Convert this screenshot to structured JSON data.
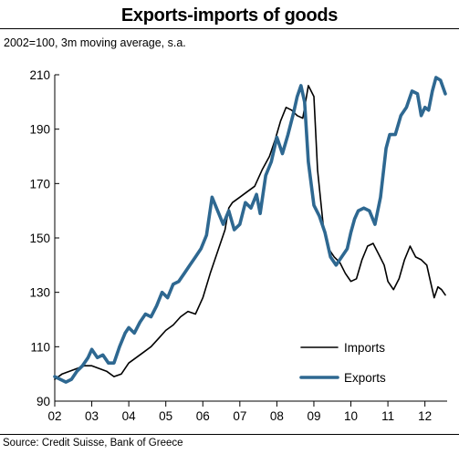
{
  "title": "Exports-imports of goods",
  "subtitle": "2002=100, 3m moving average, s.a.",
  "source": "Source: Credit Suisse, Bank of Greece",
  "chart_data": {
    "type": "line",
    "title": "Exports-imports of goods",
    "subtitle": "2002=100, 3m moving average, s.a.",
    "xlabel": "",
    "ylabel": "",
    "xlim": [
      2002,
      2012.6
    ],
    "ylim": [
      90,
      210
    ],
    "yticks": [
      90,
      110,
      130,
      150,
      170,
      190,
      210
    ],
    "xticks": [
      2002,
      2003,
      2004,
      2005,
      2006,
      2007,
      2008,
      2009,
      2010,
      2011,
      2012
    ],
    "xtick_labels": [
      "02",
      "03",
      "04",
      "05",
      "06",
      "07",
      "08",
      "09",
      "10",
      "11",
      "12"
    ],
    "grid": false,
    "legend_position": "bottom-right",
    "series": [
      {
        "name": "Imports",
        "color": "#000000",
        "points": [
          [
            2002.0,
            98
          ],
          [
            2002.2,
            100
          ],
          [
            2002.4,
            101
          ],
          [
            2002.6,
            102
          ],
          [
            2002.8,
            103
          ],
          [
            2003.0,
            103
          ],
          [
            2003.2,
            102
          ],
          [
            2003.4,
            101
          ],
          [
            2003.6,
            99
          ],
          [
            2003.8,
            100
          ],
          [
            2004.0,
            104
          ],
          [
            2004.2,
            106
          ],
          [
            2004.4,
            108
          ],
          [
            2004.6,
            110
          ],
          [
            2004.8,
            113
          ],
          [
            2005.0,
            116
          ],
          [
            2005.2,
            118
          ],
          [
            2005.4,
            121
          ],
          [
            2005.6,
            123
          ],
          [
            2005.8,
            122
          ],
          [
            2006.0,
            128
          ],
          [
            2006.2,
            137
          ],
          [
            2006.4,
            145
          ],
          [
            2006.6,
            153
          ],
          [
            2006.7,
            161
          ],
          [
            2006.8,
            163
          ],
          [
            2007.0,
            165
          ],
          [
            2007.2,
            167
          ],
          [
            2007.4,
            169
          ],
          [
            2007.6,
            175
          ],
          [
            2007.8,
            180
          ],
          [
            2007.95,
            186
          ],
          [
            2008.1,
            193
          ],
          [
            2008.25,
            198
          ],
          [
            2008.4,
            197
          ],
          [
            2008.55,
            195
          ],
          [
            2008.7,
            194
          ],
          [
            2008.85,
            206
          ],
          [
            2009.0,
            202
          ],
          [
            2009.1,
            175
          ],
          [
            2009.25,
            155
          ],
          [
            2009.4,
            146
          ],
          [
            2009.55,
            143
          ],
          [
            2009.7,
            141
          ],
          [
            2009.85,
            137
          ],
          [
            2010.0,
            134
          ],
          [
            2010.15,
            135
          ],
          [
            2010.3,
            142
          ],
          [
            2010.45,
            147
          ],
          [
            2010.6,
            148
          ],
          [
            2010.75,
            144
          ],
          [
            2010.9,
            140
          ],
          [
            2011.0,
            134
          ],
          [
            2011.15,
            131
          ],
          [
            2011.3,
            135
          ],
          [
            2011.45,
            142
          ],
          [
            2011.6,
            147
          ],
          [
            2011.75,
            143
          ],
          [
            2011.9,
            142
          ],
          [
            2012.05,
            140
          ],
          [
            2012.15,
            134
          ],
          [
            2012.25,
            128
          ],
          [
            2012.35,
            132
          ],
          [
            2012.45,
            131
          ],
          [
            2012.55,
            129
          ]
        ]
      },
      {
        "name": "Exports",
        "color": "#2e6891",
        "points": [
          [
            2002.0,
            99
          ],
          [
            2002.15,
            98
          ],
          [
            2002.3,
            97
          ],
          [
            2002.45,
            98
          ],
          [
            2002.6,
            101
          ],
          [
            2002.75,
            103
          ],
          [
            2002.9,
            106
          ],
          [
            2003.0,
            109
          ],
          [
            2003.15,
            106
          ],
          [
            2003.3,
            107
          ],
          [
            2003.45,
            104
          ],
          [
            2003.6,
            104
          ],
          [
            2003.75,
            110
          ],
          [
            2003.9,
            115
          ],
          [
            2004.0,
            117
          ],
          [
            2004.15,
            115
          ],
          [
            2004.3,
            119
          ],
          [
            2004.45,
            122
          ],
          [
            2004.6,
            121
          ],
          [
            2004.75,
            125
          ],
          [
            2004.9,
            130
          ],
          [
            2005.05,
            128
          ],
          [
            2005.2,
            133
          ],
          [
            2005.35,
            134
          ],
          [
            2005.5,
            137
          ],
          [
            2005.65,
            140
          ],
          [
            2005.8,
            143
          ],
          [
            2005.95,
            146
          ],
          [
            2006.1,
            151
          ],
          [
            2006.25,
            165
          ],
          [
            2006.4,
            160
          ],
          [
            2006.55,
            155
          ],
          [
            2006.7,
            160
          ],
          [
            2006.85,
            153
          ],
          [
            2007.0,
            155
          ],
          [
            2007.15,
            163
          ],
          [
            2007.3,
            161
          ],
          [
            2007.45,
            166
          ],
          [
            2007.55,
            159
          ],
          [
            2007.7,
            173
          ],
          [
            2007.85,
            178
          ],
          [
            2008.0,
            187
          ],
          [
            2008.15,
            181
          ],
          [
            2008.3,
            188
          ],
          [
            2008.45,
            196
          ],
          [
            2008.55,
            202
          ],
          [
            2008.65,
            206
          ],
          [
            2008.75,
            200
          ],
          [
            2008.85,
            178
          ],
          [
            2009.0,
            162
          ],
          [
            2009.15,
            158
          ],
          [
            2009.3,
            152
          ],
          [
            2009.45,
            143
          ],
          [
            2009.6,
            140
          ],
          [
            2009.75,
            143
          ],
          [
            2009.9,
            146
          ],
          [
            2010.0,
            152
          ],
          [
            2010.1,
            157
          ],
          [
            2010.2,
            160
          ],
          [
            2010.35,
            161
          ],
          [
            2010.5,
            160
          ],
          [
            2010.65,
            155
          ],
          [
            2010.8,
            165
          ],
          [
            2010.95,
            183
          ],
          [
            2011.05,
            188
          ],
          [
            2011.2,
            188
          ],
          [
            2011.35,
            195
          ],
          [
            2011.5,
            198
          ],
          [
            2011.65,
            204
          ],
          [
            2011.8,
            203
          ],
          [
            2011.9,
            195
          ],
          [
            2012.0,
            198
          ],
          [
            2012.1,
            197
          ],
          [
            2012.2,
            204
          ],
          [
            2012.3,
            209
          ],
          [
            2012.42,
            208
          ],
          [
            2012.55,
            203
          ]
        ]
      }
    ]
  }
}
